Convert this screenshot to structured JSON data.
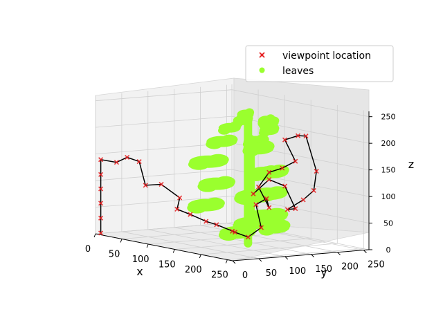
{
  "chart_data": {
    "type": "scatter3d",
    "title": "",
    "xlabel": "x",
    "ylabel": "y",
    "zlabel": "z",
    "xlim": [
      0,
      260
    ],
    "ylim": [
      0,
      260
    ],
    "zlim": [
      0,
      260
    ],
    "xticks": [
      "0",
      "50",
      "100",
      "150",
      "200",
      "250"
    ],
    "yticks": [
      "0",
      "50",
      "100",
      "150",
      "200",
      "250"
    ],
    "zticks": [
      "0",
      "50",
      "100",
      "150",
      "200",
      "250"
    ],
    "grid": true,
    "legend_position": "top-right",
    "legend": [
      {
        "name": "viewpoint location",
        "marker": "x",
        "color": "#e41a1c"
      },
      {
        "name": "leaves",
        "marker": "circle",
        "color": "#9aff2e"
      }
    ],
    "series": [
      {
        "name": "leaves",
        "color": "#9aff2e",
        "blobs": [
          {
            "x": 160,
            "y": 120,
            "z": 235,
            "rx": 14,
            "ry": 4
          },
          {
            "x": 150,
            "y": 105,
            "z": 220,
            "rx": 16,
            "ry": 4
          },
          {
            "x": 140,
            "y": 145,
            "z": 240,
            "rx": 12,
            "ry": 4
          },
          {
            "x": 175,
            "y": 150,
            "z": 235,
            "rx": 12,
            "ry": 4
          },
          {
            "x": 170,
            "y": 160,
            "z": 215,
            "rx": 14,
            "ry": 4
          },
          {
            "x": 155,
            "y": 175,
            "z": 225,
            "rx": 14,
            "ry": 4
          },
          {
            "x": 130,
            "y": 110,
            "z": 190,
            "rx": 22,
            "ry": 5
          },
          {
            "x": 185,
            "y": 120,
            "z": 200,
            "rx": 18,
            "ry": 5
          },
          {
            "x": 160,
            "y": 150,
            "z": 180,
            "rx": 22,
            "ry": 6
          },
          {
            "x": 140,
            "y": 170,
            "z": 175,
            "rx": 18,
            "ry": 5
          },
          {
            "x": 115,
            "y": 100,
            "z": 150,
            "rx": 28,
            "ry": 6
          },
          {
            "x": 185,
            "y": 150,
            "z": 140,
            "rx": 24,
            "ry": 6
          },
          {
            "x": 150,
            "y": 170,
            "z": 130,
            "rx": 22,
            "ry": 6
          },
          {
            "x": 125,
            "y": 105,
            "z": 110,
            "rx": 26,
            "ry": 6
          },
          {
            "x": 175,
            "y": 130,
            "z": 95,
            "rx": 30,
            "ry": 7
          },
          {
            "x": 150,
            "y": 180,
            "z": 90,
            "rx": 26,
            "ry": 6
          },
          {
            "x": 120,
            "y": 90,
            "z": 70,
            "rx": 26,
            "ry": 6
          },
          {
            "x": 175,
            "y": 150,
            "z": 55,
            "rx": 30,
            "ry": 7
          },
          {
            "x": 140,
            "y": 160,
            "z": 35,
            "rx": 28,
            "ry": 6
          },
          {
            "x": 160,
            "y": 110,
            "z": 25,
            "rx": 26,
            "ry": 6
          },
          {
            "x": 200,
            "y": 140,
            "z": 40,
            "rx": 22,
            "ry": 6
          }
        ],
        "stems": [
          {
            "x": 150,
            "y": 140,
            "z0": 0,
            "z1": 240
          },
          {
            "x": 165,
            "y": 130,
            "z0": 40,
            "z1": 200
          }
        ]
      },
      {
        "name": "viewpoint location",
        "color": "#e41a1c",
        "line_color": "#000000",
        "points": [
          [
            5,
            5,
            2
          ],
          [
            5,
            5,
            30
          ],
          [
            5,
            5,
            58
          ],
          [
            5,
            5,
            85
          ],
          [
            5,
            5,
            112
          ],
          [
            5,
            5,
            140
          ],
          [
            25,
            15,
            138
          ],
          [
            40,
            20,
            150
          ],
          [
            58,
            25,
            145
          ],
          [
            60,
            35,
            100
          ],
          [
            80,
            45,
            105
          ],
          [
            110,
            50,
            85
          ],
          [
            95,
            60,
            60
          ],
          [
            120,
            60,
            55
          ],
          [
            140,
            70,
            45
          ],
          [
            150,
            80,
            40
          ],
          [
            175,
            90,
            30
          ],
          [
            160,
            100,
            28
          ],
          [
            180,
            110,
            20
          ],
          [
            195,
            120,
            40
          ],
          [
            180,
            125,
            80
          ],
          [
            200,
            125,
            95
          ],
          [
            190,
            140,
            75
          ],
          [
            170,
            140,
            110
          ],
          [
            185,
            145,
            140
          ],
          [
            200,
            155,
            150
          ],
          [
            215,
            165,
            165
          ],
          [
            190,
            170,
            200
          ],
          [
            205,
            180,
            210
          ],
          [
            230,
            170,
            215
          ],
          [
            240,
            180,
            150
          ],
          [
            225,
            190,
            110
          ],
          [
            210,
            185,
            90
          ],
          [
            195,
            170,
            70
          ],
          [
            230,
            150,
            80
          ],
          [
            215,
            145,
            120
          ],
          [
            180,
            150,
            125
          ],
          [
            160,
            140,
            95
          ]
        ]
      }
    ]
  }
}
